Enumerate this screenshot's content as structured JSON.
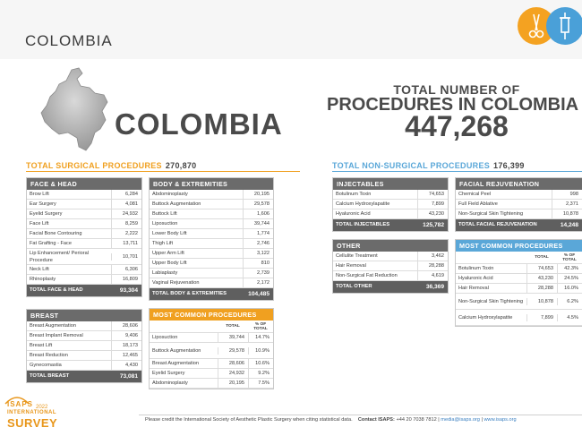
{
  "header": {
    "country": "COLOMBIA"
  },
  "hero": {
    "country_big": "COLOMBIA",
    "total_line1": "TOTAL NUMBER OF",
    "total_line2": "PROCEDURES IN COLOMBIA",
    "total_value": "447,268"
  },
  "surgical": {
    "title": "TOTAL SURGICAL PROCEDURES",
    "total": "270,870"
  },
  "nonsurgical": {
    "title": "TOTAL NON-SURGICAL PROCEDURES",
    "total": "176,399"
  },
  "face_head": {
    "title": "FACE & HEAD",
    "rows": [
      {
        "label": "Brow Lift",
        "value": "6,284"
      },
      {
        "label": "Ear Surgery",
        "value": "4,081"
      },
      {
        "label": "Eyelid Surgery",
        "value": "24,932"
      },
      {
        "label": "Face Lift",
        "value": "8,259"
      },
      {
        "label": "Facial Bone Contouring",
        "value": "2,222"
      },
      {
        "label": "Fat Grafting - Face",
        "value": "13,711"
      },
      {
        "label": "Lip Enhancement/ Perioral Procedure",
        "value": "10,701"
      },
      {
        "label": "Neck Lift",
        "value": "6,306"
      },
      {
        "label": "Rhinoplasty",
        "value": "16,809"
      }
    ],
    "total_label": "TOTAL FACE & HEAD",
    "total_value": "93,304"
  },
  "body": {
    "title": "BODY & EXTREMITIES",
    "rows": [
      {
        "label": "Abdominoplasty",
        "value": "20,195"
      },
      {
        "label": "Buttock Augmentation",
        "value": "29,578"
      },
      {
        "label": "Buttock Lift",
        "value": "1,606"
      },
      {
        "label": "Liposuction",
        "value": "39,744"
      },
      {
        "label": "Lower Body Lift",
        "value": "1,774"
      },
      {
        "label": "Thigh Lift",
        "value": "2,746"
      },
      {
        "label": "Upper Arm Lift",
        "value": "3,122"
      },
      {
        "label": "Upper Body Lift",
        "value": "810"
      },
      {
        "label": "Labiaplasty",
        "value": "2,739"
      },
      {
        "label": "Vaginal Rejuvenation",
        "value": "2,172"
      }
    ],
    "total_label": "TOTAL BODY & EXTREMITIES",
    "total_value": "104,485"
  },
  "breast": {
    "title": "BREAST",
    "rows": [
      {
        "label": "Breast Augmentation",
        "value": "28,606"
      },
      {
        "label": "Breast Implant Removal",
        "value": "9,406"
      },
      {
        "label": "Breast Lift",
        "value": "18,173"
      },
      {
        "label": "Breast Reduction",
        "value": "12,465"
      },
      {
        "label": "Gynecomastia",
        "value": "4,430"
      }
    ],
    "total_label": "TOTAL BREAST",
    "total_value": "73,081"
  },
  "common_surgical": {
    "title": "MOST COMMON PROCEDURES",
    "col1": "TOTAL",
    "col2": "% OF TOTAL",
    "rows": [
      {
        "label": "Liposuction",
        "value": "39,744",
        "pct": "14.7%"
      },
      {
        "label": "Buttock Augmentation",
        "value": "29,578",
        "pct": "10.9%"
      },
      {
        "label": "Breast Augmentation",
        "value": "28,606",
        "pct": "10.6%"
      },
      {
        "label": "Eyelid Surgery",
        "value": "24,932",
        "pct": "9.2%"
      },
      {
        "label": "Abdominoplasty",
        "value": "20,195",
        "pct": "7.5%"
      }
    ]
  },
  "injectables": {
    "title": "INJECTABLES",
    "rows": [
      {
        "label": "Botulinum Toxin",
        "value": "74,653"
      },
      {
        "label": "Calcium Hydroxylapatite",
        "value": "7,899"
      },
      {
        "label": "Hyaluronic Acid",
        "value": "43,230"
      }
    ],
    "total_label": "TOTAL INJECTABLES",
    "total_value": "125,782"
  },
  "other": {
    "title": "OTHER",
    "rows": [
      {
        "label": "Cellulite Treatment",
        "value": "3,462"
      },
      {
        "label": "Hair Removal",
        "value": "28,288"
      },
      {
        "label": "Non-Surgical Fat Reduction",
        "value": "4,619"
      }
    ],
    "total_label": "TOTAL OTHER",
    "total_value": "36,369"
  },
  "facial_rejuv": {
    "title": "FACIAL REJUVENATION",
    "rows": [
      {
        "label": "Chemical Peel",
        "value": "998"
      },
      {
        "label": "Full Field Ablative",
        "value": "2,371"
      },
      {
        "label": "Non-Surgical Skin Tightening",
        "value": "10,878"
      }
    ],
    "total_label": "TOTAL FACIAL REJUVENATION",
    "total_value": "14,248"
  },
  "common_nonsurgical": {
    "title": "MOST COMMON PROCEDURES",
    "col1": "TOTAL",
    "col2": "% OF TOTAL",
    "rows": [
      {
        "label": "Botulinum Toxin",
        "value": "74,653",
        "pct": "42.3%"
      },
      {
        "label": "Hyaluronic Acid",
        "value": "43,230",
        "pct": "24.5%"
      },
      {
        "label": "Hair Removal",
        "value": "28,288",
        "pct": "16.0%"
      },
      {
        "label": "Non-Surgical Skin Tightening",
        "value": "10,878",
        "pct": "6.2%"
      },
      {
        "label": "Calcium Hydroxylapatite",
        "value": "7,899",
        "pct": "4.5%"
      }
    ]
  },
  "footer": {
    "credit": "Please credit the International Society of Aesthetic Plastic Surgery when citing statistical data.",
    "contact_label": "Contact ISAPS:",
    "phone": "+44 20 7038 7812",
    "email": "media@isaps.org",
    "web": "www.isaps.org",
    "sep": "|"
  },
  "brand": {
    "isaps": "ISAPS",
    "international": "INTERNATIONAL",
    "survey": "SURVEY",
    "year": "2022"
  },
  "colors": {
    "orange": "#f0a020",
    "blue": "#5aa7d8",
    "gray": "#6b6b6b"
  }
}
